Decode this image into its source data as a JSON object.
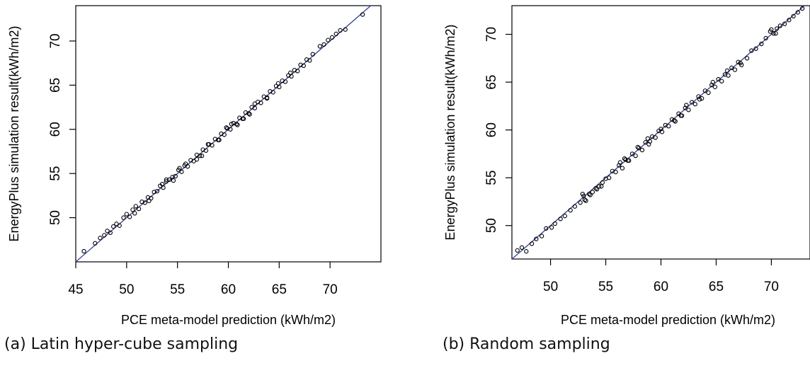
{
  "colors": {
    "line": "#3b4b9c",
    "point": "#000000",
    "axis": "#000000"
  },
  "captions": {
    "a": "(a) Latin hyper-cube sampling",
    "b": "(b) Random sampling"
  },
  "chart_data": [
    {
      "type": "scatter",
      "title": "",
      "xlabel": "PCE meta-model prediction (kWh/m2)",
      "ylabel": "EnergyPlus simulation result(kWh/m2)",
      "xlim": [
        45,
        75
      ],
      "ylim": [
        45,
        74
      ],
      "xticks": [
        45,
        50,
        55,
        60,
        65,
        70
      ],
      "yticks": [
        50,
        55,
        60,
        65,
        70
      ],
      "grid": false,
      "reference_line": {
        "from": [
          45,
          45
        ],
        "to": [
          75,
          75
        ]
      },
      "x": [
        45.8,
        46.9,
        47.4,
        47.8,
        48.1,
        48.4,
        48.7,
        49.0,
        49.3,
        49.7,
        50.0,
        50.3,
        50.6,
        50.9,
        51.2,
        51.5,
        51.8,
        52.1,
        52.4,
        52.7,
        53.0,
        53.3,
        53.6,
        53.9,
        54.2,
        54.5,
        54.8,
        55.1,
        55.4,
        55.7,
        56.0,
        56.3,
        56.6,
        56.9,
        57.2,
        57.5,
        57.8,
        58.1,
        58.4,
        58.7,
        59.0,
        59.3,
        59.6,
        59.9,
        60.2,
        60.5,
        60.8,
        61.1,
        61.4,
        61.7,
        62.0,
        62.3,
        62.6,
        62.9,
        63.2,
        63.5,
        63.8,
        64.1,
        64.4,
        64.7,
        65.0,
        65.3,
        65.6,
        65.9,
        66.2,
        66.5,
        66.8,
        67.1,
        67.4,
        67.7,
        68.0,
        68.3,
        69.0,
        69.4,
        69.8,
        70.2,
        70.6,
        71.0,
        71.5,
        73.2,
        50.8,
        52.2,
        53.5,
        54.6,
        55.8,
        56.9,
        58.0,
        59.1,
        60.3,
        61.5,
        62.6,
        63.8,
        64.9,
        66.1,
        57.4,
        59.8,
        62.1,
        55.2,
        53.9,
        60.9
      ],
      "y": [
        46.2,
        47.1,
        47.7,
        48.0,
        48.5,
        48.3,
        49.0,
        49.3,
        49.1,
        50.0,
        50.4,
        50.1,
        50.9,
        51.3,
        51.0,
        51.8,
        51.7,
        52.3,
        52.2,
        52.9,
        53.0,
        53.6,
        53.4,
        54.1,
        54.3,
        54.6,
        54.7,
        55.4,
        55.2,
        55.9,
        55.8,
        56.5,
        56.4,
        57.1,
        57.0,
        57.7,
        57.6,
        58.3,
        58.2,
        58.9,
        58.8,
        59.5,
        59.4,
        60.1,
        60.0,
        60.7,
        60.6,
        61.3,
        61.2,
        61.9,
        61.8,
        62.5,
        62.4,
        63.1,
        63.0,
        63.7,
        63.6,
        64.3,
        64.2,
        64.9,
        64.8,
        65.5,
        65.4,
        66.1,
        66.0,
        66.7,
        66.6,
        67.3,
        67.2,
        67.9,
        67.8,
        68.5,
        69.4,
        69.6,
        70.1,
        70.4,
        70.8,
        71.2,
        71.3,
        73.0,
        50.5,
        51.9,
        53.8,
        54.2,
        56.1,
        56.6,
        58.3,
        58.8,
        60.6,
        61.2,
        62.9,
        63.5,
        65.2,
        66.4,
        57.0,
        60.2,
        61.7,
        55.6,
        54.3,
        60.5
      ]
    },
    {
      "type": "scatter",
      "title": "",
      "xlabel": "PCE meta-model prediction (kWh/m2)",
      "ylabel": "EnergyPlus simulation result(kWh/m2)",
      "xlim": [
        46.5,
        73.5
      ],
      "ylim": [
        46.5,
        73
      ],
      "xticks": [
        50,
        55,
        60,
        65,
        70
      ],
      "yticks": [
        50,
        55,
        60,
        65,
        70
      ],
      "grid": false,
      "reference_line": {
        "from": [
          46.5,
          46.5
        ],
        "to": [
          73.5,
          73.5
        ]
      },
      "x": [
        47.0,
        47.4,
        47.8,
        48.3,
        48.7,
        49.2,
        49.6,
        50.1,
        50.4,
        50.9,
        51.3,
        51.8,
        52.2,
        52.7,
        53.0,
        53.2,
        53.5,
        53.8,
        54.1,
        54.4,
        54.7,
        55.0,
        55.3,
        55.6,
        55.9,
        56.2,
        56.5,
        56.8,
        57.1,
        57.4,
        57.7,
        58.0,
        58.3,
        58.6,
        58.9,
        59.2,
        59.5,
        59.8,
        60.1,
        60.4,
        60.7,
        61.0,
        61.3,
        61.6,
        61.9,
        62.2,
        62.5,
        62.8,
        63.1,
        63.4,
        63.7,
        64.0,
        64.3,
        64.6,
        64.9,
        65.2,
        65.5,
        65.8,
        66.1,
        66.4,
        66.7,
        67.0,
        67.3,
        67.8,
        68.2,
        68.6,
        69.1,
        69.5,
        69.9,
        70.2,
        70.5,
        70.8,
        71.2,
        71.6,
        72.0,
        72.4,
        72.8,
        53.1,
        53.6,
        54.2,
        56.3,
        57.0,
        57.9,
        59.0,
        60.0,
        61.2,
        62.3,
        63.5,
        64.7,
        66.0,
        67.2,
        70.0,
        70.4,
        52.9,
        54.6,
        58.8,
        61.8,
        56.7
      ],
      "y": [
        47.4,
        47.7,
        47.3,
        48.1,
        48.6,
        48.9,
        49.7,
        49.8,
        50.2,
        50.7,
        51.0,
        51.6,
        52.0,
        52.4,
        53.1,
        52.6,
        53.3,
        53.5,
        53.9,
        54.1,
        54.5,
        54.9,
        55.0,
        55.7,
        55.6,
        56.3,
        56.0,
        56.9,
        56.8,
        57.5,
        57.3,
        58.1,
        57.9,
        58.7,
        58.5,
        59.3,
        59.2,
        59.9,
        59.8,
        60.5,
        60.4,
        61.1,
        60.9,
        61.7,
        61.5,
        62.3,
        62.1,
        62.9,
        62.7,
        63.5,
        63.3,
        64.1,
        63.9,
        64.7,
        64.5,
        65.3,
        65.1,
        65.8,
        65.7,
        66.5,
        66.3,
        67.1,
        66.8,
        67.5,
        68.3,
        68.5,
        69.0,
        69.6,
        70.3,
        70.1,
        70.6,
        70.9,
        71.1,
        71.5,
        71.9,
        72.3,
        72.7,
        52.7,
        53.2,
        53.8,
        56.6,
        56.8,
        58.2,
        58.8,
        60.1,
        61.0,
        62.6,
        63.2,
        65.0,
        66.2,
        67.0,
        70.5,
        70.1,
        53.3,
        54.1,
        59.1,
        61.5,
        57.0
      ]
    }
  ]
}
